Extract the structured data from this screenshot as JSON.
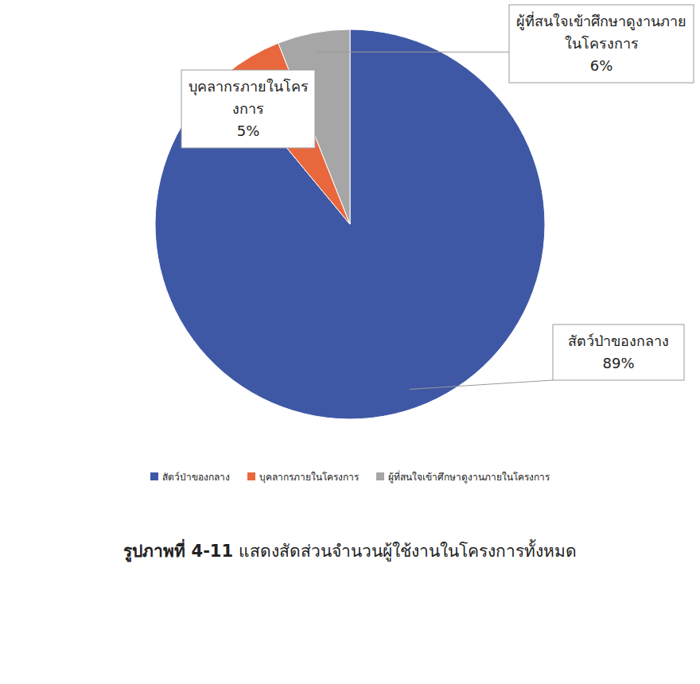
{
  "chart_data": {
    "type": "pie",
    "title": "รูปภาพที่ 4-11 แสดงสัดส่วนจำนวนผู้ใช้งานในโครงการทั้งหมด",
    "categories": [
      "สัตว์ป่าของกลาง",
      "บุคลากรภายในโครงการ",
      "ผู้ที่สนใจเข้าศึกษาดูงานภายในโครงการ"
    ],
    "values": [
      89,
      5,
      6
    ],
    "value_labels": [
      "89%",
      "5%",
      "6%"
    ],
    "colors": [
      "#3f58a6",
      "#e9673d",
      "#a6a6a6"
    ],
    "data_labels": true,
    "legend": "bottom"
  }
}
